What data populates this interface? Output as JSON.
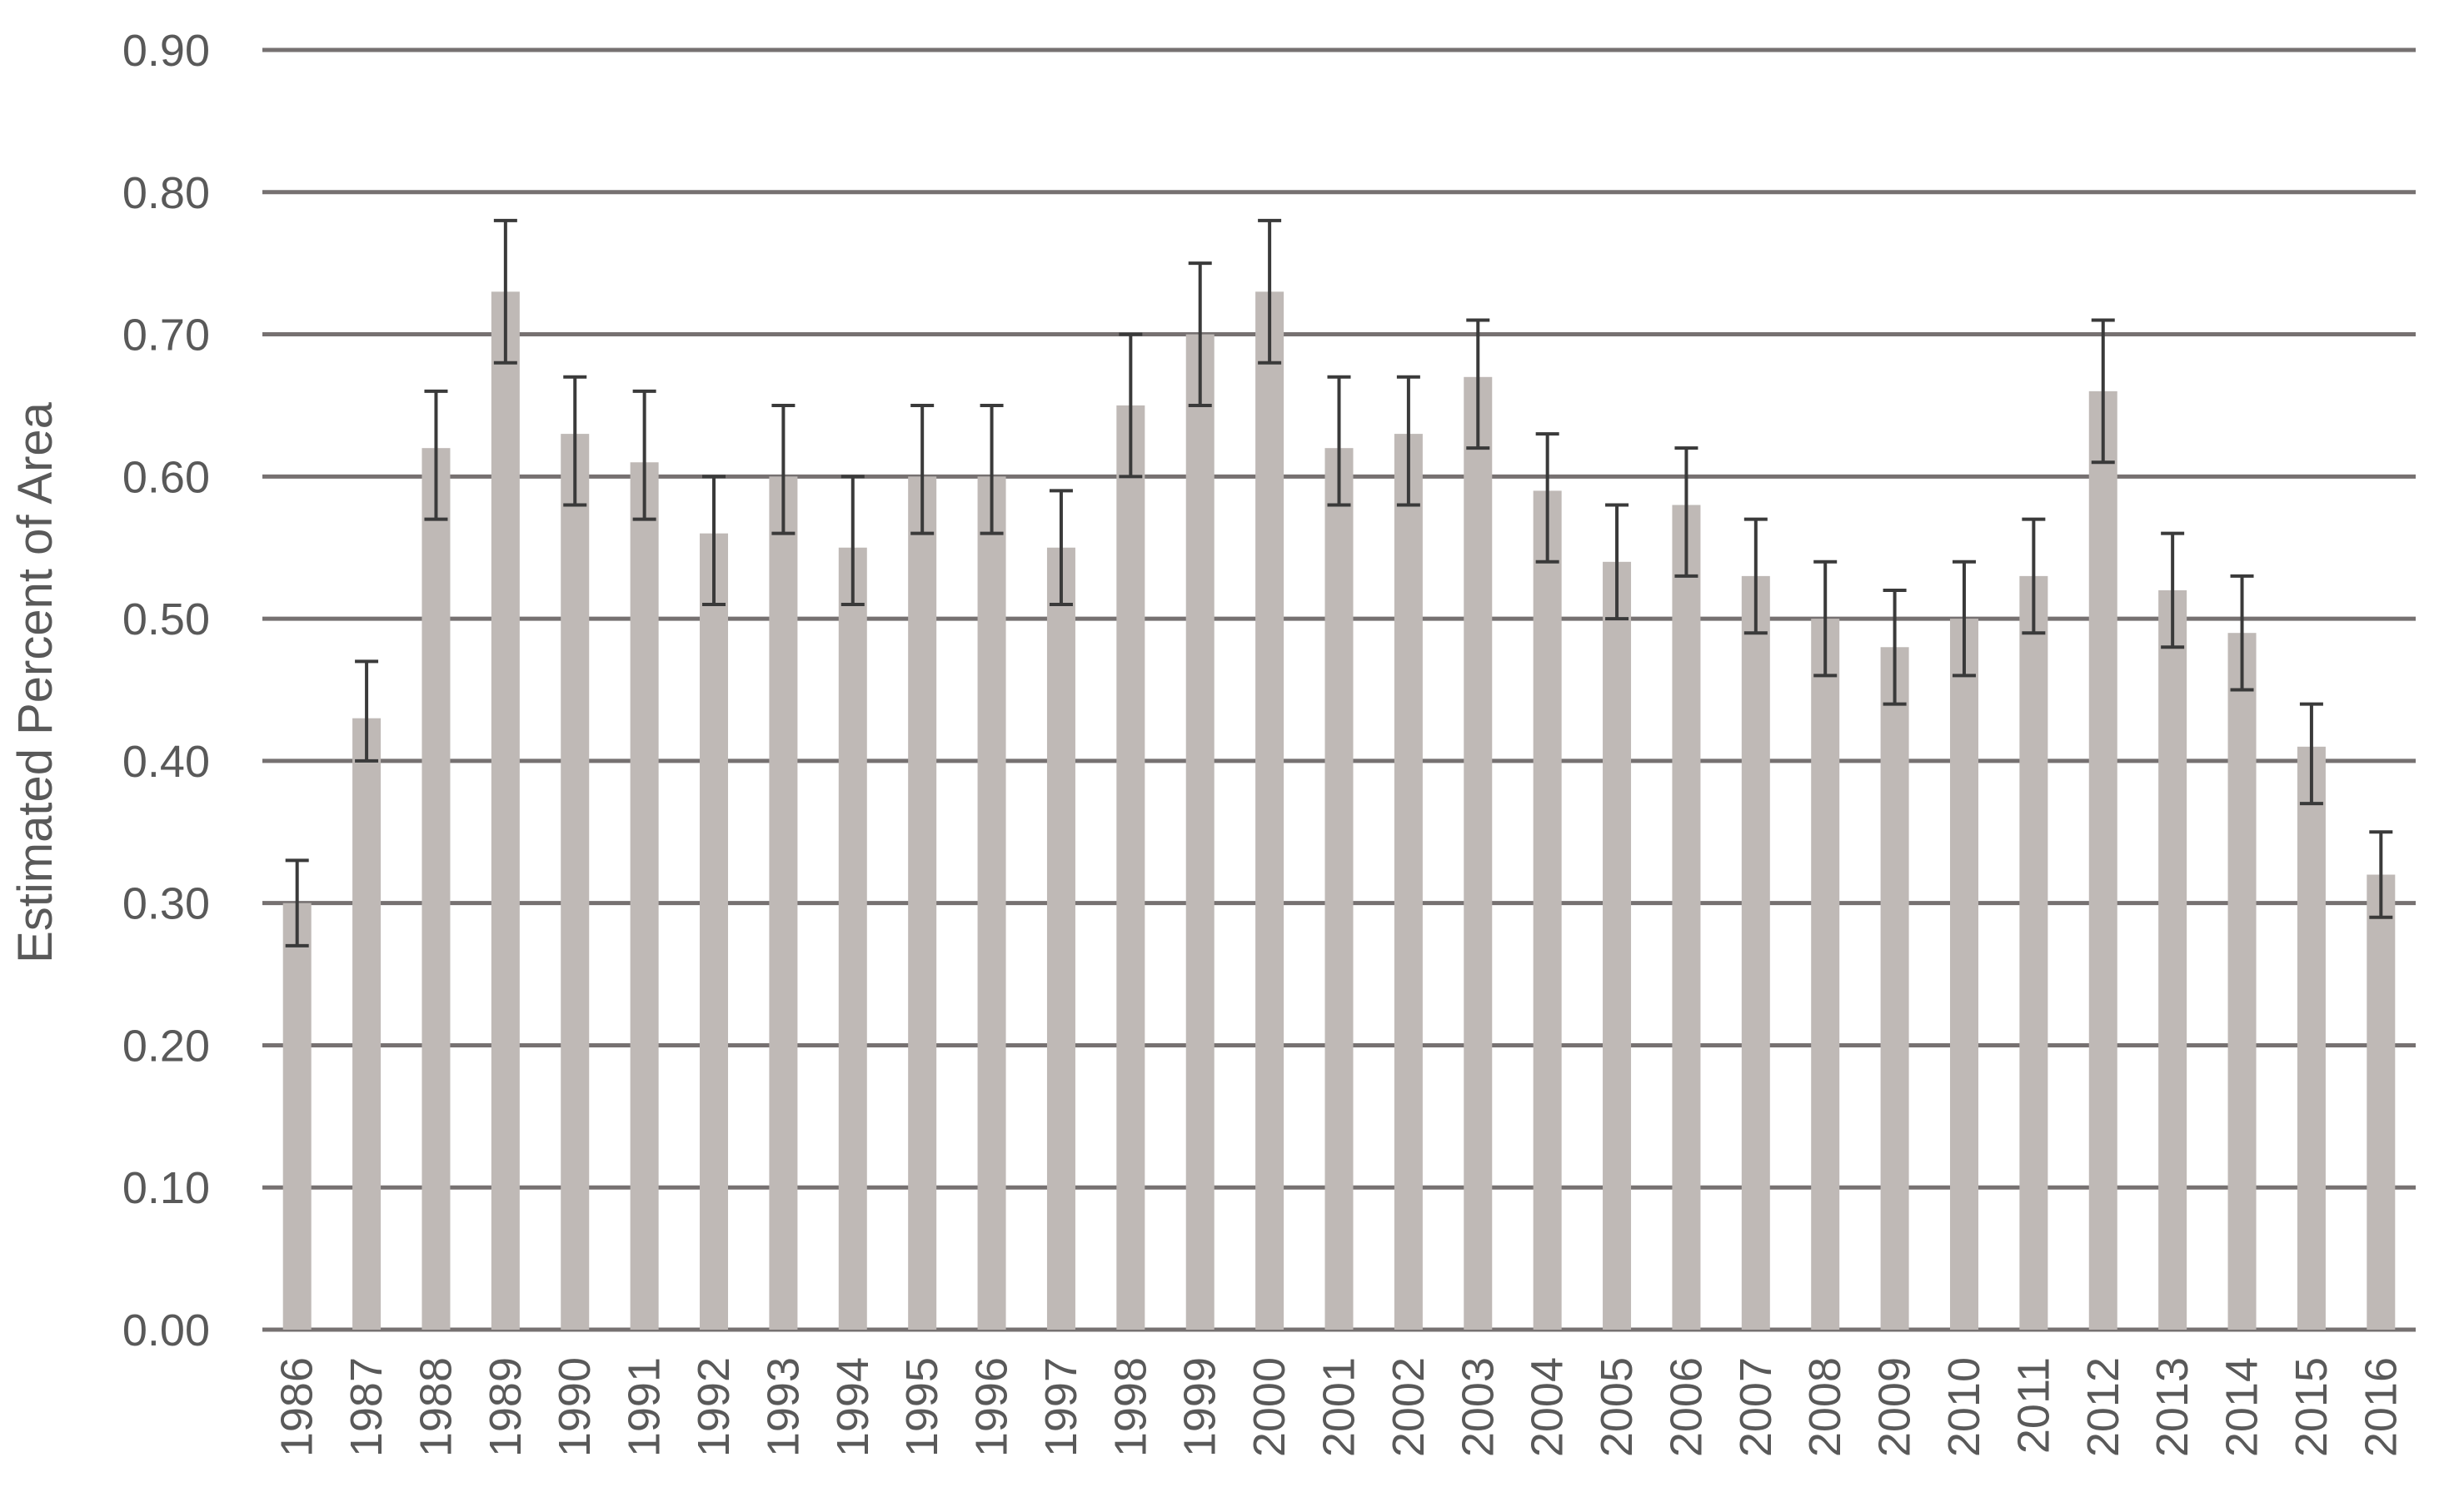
{
  "chart_data": {
    "type": "bar",
    "title": "",
    "xlabel": "",
    "ylabel": "Estimated Percent of Area",
    "ylim": [
      0,
      0.9
    ],
    "yticks": [
      "0.00",
      "0.10",
      "0.20",
      "0.30",
      "0.40",
      "0.50",
      "0.60",
      "0.70",
      "0.80",
      "0.90"
    ],
    "grid": true,
    "legend": "none",
    "bar_color": "#bfb9b6",
    "grid_color": "#767171",
    "errorbar_color": "#3a3a3a",
    "categories": [
      "1986",
      "1987",
      "1988",
      "1989",
      "1990",
      "1991",
      "1992",
      "1993",
      "1994",
      "1995",
      "1996",
      "1997",
      "1998",
      "1999",
      "2000",
      "2001",
      "2002",
      "2003",
      "2004",
      "2005",
      "2006",
      "2007",
      "2008",
      "2009",
      "2010",
      "2011",
      "2012",
      "2013",
      "2014",
      "2015",
      "2016"
    ],
    "values": [
      0.3,
      0.43,
      0.62,
      0.73,
      0.63,
      0.61,
      0.56,
      0.6,
      0.55,
      0.6,
      0.6,
      0.55,
      0.65,
      0.7,
      0.73,
      0.62,
      0.63,
      0.67,
      0.59,
      0.54,
      0.58,
      0.53,
      0.5,
      0.48,
      0.5,
      0.53,
      0.66,
      0.52,
      0.49,
      0.41,
      0.32
    ],
    "err_low": [
      0.27,
      0.4,
      0.57,
      0.68,
      0.58,
      0.57,
      0.51,
      0.56,
      0.51,
      0.56,
      0.56,
      0.51,
      0.6,
      0.65,
      0.68,
      0.58,
      0.58,
      0.62,
      0.54,
      0.5,
      0.53,
      0.49,
      0.46,
      0.44,
      0.46,
      0.49,
      0.61,
      0.48,
      0.45,
      0.37,
      0.29
    ],
    "err_high": [
      0.33,
      0.47,
      0.66,
      0.78,
      0.67,
      0.66,
      0.6,
      0.65,
      0.6,
      0.65,
      0.65,
      0.59,
      0.7,
      0.75,
      0.78,
      0.67,
      0.67,
      0.71,
      0.63,
      0.58,
      0.62,
      0.57,
      0.54,
      0.52,
      0.54,
      0.57,
      0.71,
      0.56,
      0.53,
      0.44,
      0.35
    ]
  }
}
